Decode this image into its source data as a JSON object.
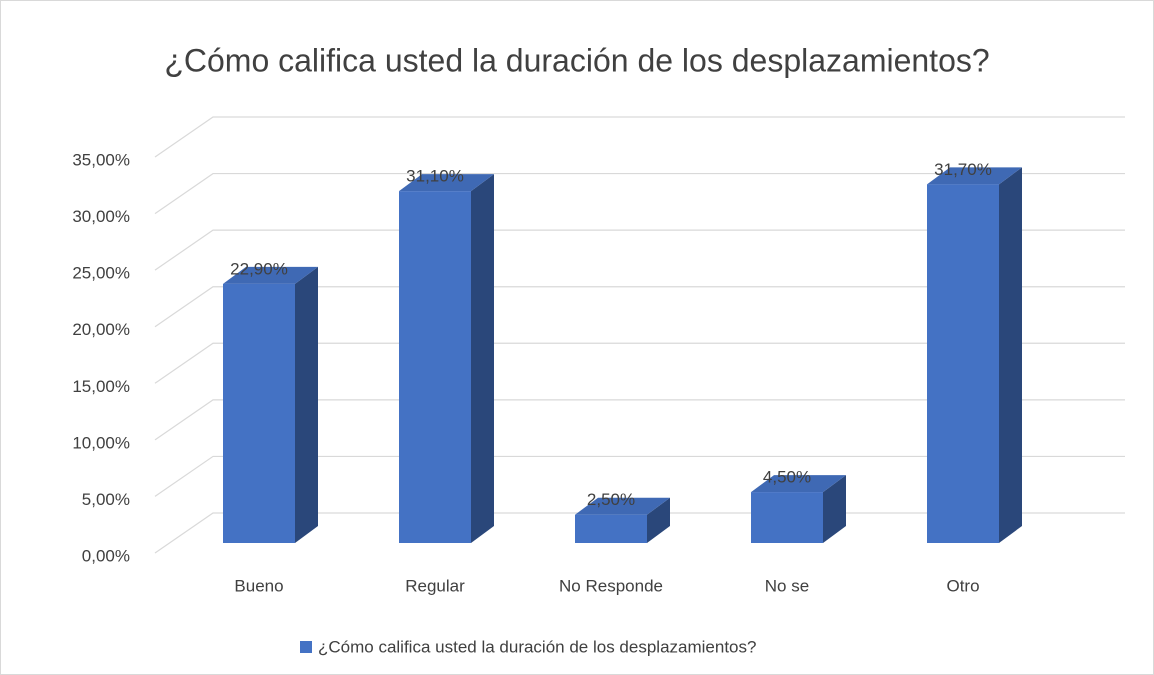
{
  "chart_data": {
    "type": "bar3d",
    "title": "¿Cómo califica usted la duración de los desplazamientos?",
    "categories": [
      "Bueno",
      "Regular",
      "No Responde",
      "No se",
      "Otro"
    ],
    "series": [
      {
        "name": "¿Cómo califica usted la duración de los desplazamientos?",
        "color": "#4472c4",
        "values": [
          22.9,
          31.1,
          2.5,
          4.5,
          31.7
        ],
        "value_labels": [
          "22,90%",
          "31,10%",
          "2,50%",
          "4,50%",
          "31,70%"
        ]
      }
    ],
    "ylim": [
      0,
      35
    ],
    "yticks": [
      {
        "value": 0,
        "label": "0,00%"
      },
      {
        "value": 5,
        "label": "5,00%"
      },
      {
        "value": 10,
        "label": "10,00%"
      },
      {
        "value": 15,
        "label": "15,00%"
      },
      {
        "value": 20,
        "label": "20,00%"
      },
      {
        "value": 25,
        "label": "25,00%"
      },
      {
        "value": 30,
        "label": "30,00%"
      },
      {
        "value": 35,
        "label": "35,00%"
      }
    ],
    "grid": true,
    "legend": "bottom"
  }
}
